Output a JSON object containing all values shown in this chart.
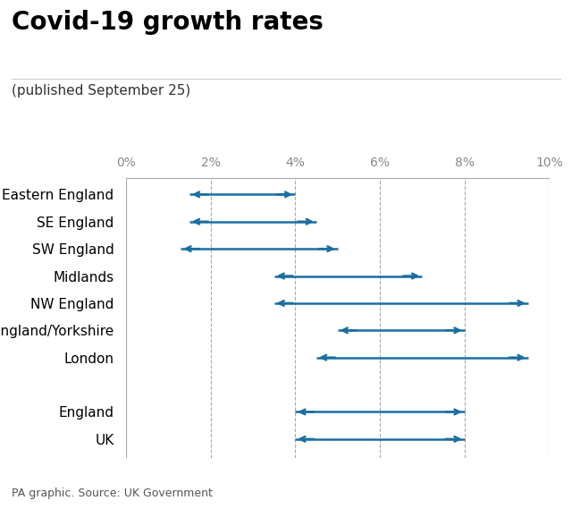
{
  "title": "Covid-19 growth rates",
  "subtitle": "(published September 25)",
  "footer": "PA graphic. Source: UK Government",
  "categories": [
    "Eastern England",
    "SE England",
    "SW England",
    "Midlands",
    "NW England",
    "NE England/Yorkshire",
    "London",
    "",
    "England",
    "UK"
  ],
  "ranges": [
    [
      1.5,
      4.0
    ],
    [
      1.5,
      4.5
    ],
    [
      1.3,
      5.0
    ],
    [
      3.5,
      7.0
    ],
    [
      3.5,
      9.5
    ],
    [
      5.0,
      8.0
    ],
    [
      4.5,
      9.5
    ],
    [
      null,
      null
    ],
    [
      4.0,
      8.0
    ],
    [
      4.0,
      8.0
    ]
  ],
  "arrow_color": "#1a6ea0",
  "background_color": "#ffffff",
  "xmin": 0,
  "xmax": 10,
  "xticks": [
    0,
    2,
    4,
    6,
    8,
    10
  ],
  "xticklabels": [
    "0%",
    "2%",
    "4%",
    "6%",
    "8%",
    "10%"
  ],
  "grid_lines": [
    2,
    4,
    6,
    8
  ],
  "title_fontsize": 20,
  "subtitle_fontsize": 11,
  "label_fontsize": 11,
  "tick_fontsize": 10,
  "footer_fontsize": 9
}
